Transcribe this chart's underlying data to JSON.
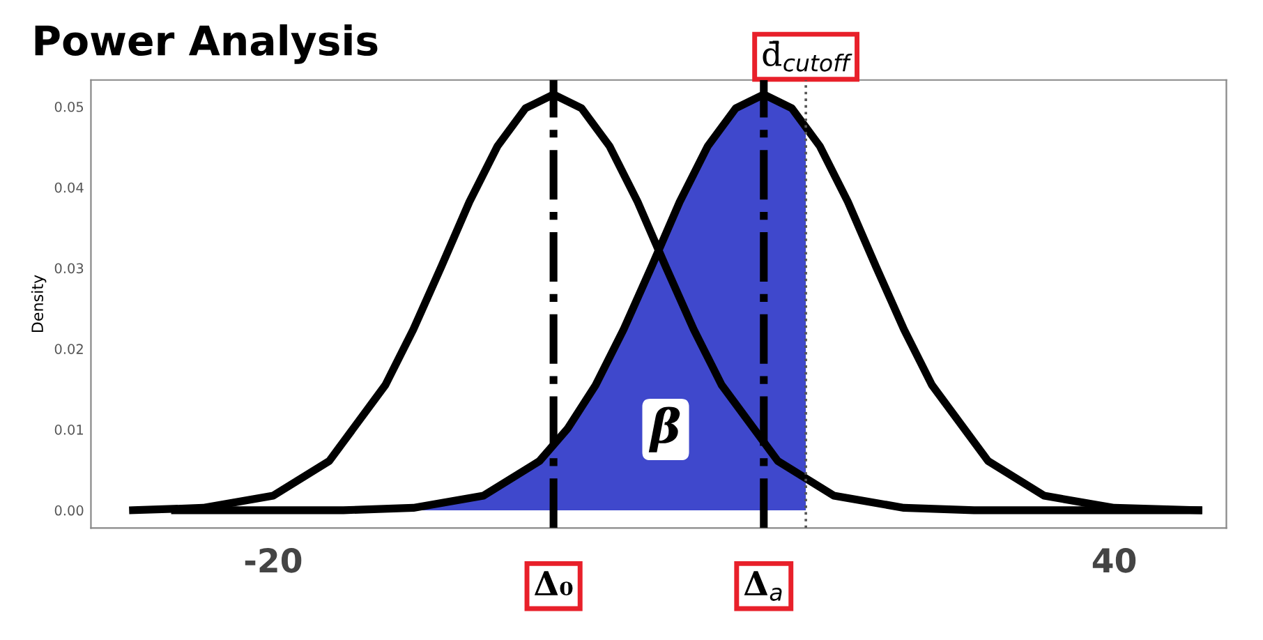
{
  "chart_data": {
    "type": "line",
    "title": "Power Analysis",
    "ylabel": "Density",
    "xlim": [
      -33,
      48
    ],
    "ylim": [
      -0.0022,
      0.0533
    ],
    "xticks": [
      -20,
      40
    ],
    "yticks": [
      {
        "value": 0,
        "label": "0.00"
      },
      {
        "value": 0.01,
        "label": "0.01"
      },
      {
        "value": 0.02,
        "label": "0.02"
      },
      {
        "value": 0.03,
        "label": "0.03"
      },
      {
        "value": 0.04,
        "label": "0.04"
      },
      {
        "value": 0.05,
        "label": "0.05"
      }
    ],
    "grid": false,
    "legend": false,
    "marker": "none",
    "line_style": "solid",
    "series": [
      {
        "type": "area",
        "color": "#3f48cc",
        "x": [
          -10,
          -5,
          -1,
          1,
          3,
          5,
          7,
          9,
          11,
          13,
          15,
          17,
          18
        ],
        "values": [
          0.0003,
          0.0018,
          0.0061,
          0.0101,
          0.0155,
          0.0224,
          0.0302,
          0.0382,
          0.0451,
          0.0498,
          0.0515,
          0.0498,
          0.0478
        ]
      },
      {
        "color": "#000000",
        "x": [
          -30,
          -25,
          -20,
          -16,
          -12,
          -10,
          -8,
          -6,
          -4,
          -2,
          0,
          2,
          4,
          6,
          8,
          10,
          12,
          16,
          20,
          25,
          30,
          35,
          40,
          46
        ],
        "values": [
          0.0,
          0.0003,
          0.0018,
          0.0061,
          0.0155,
          0.0224,
          0.0302,
          0.0382,
          0.0451,
          0.0498,
          0.0515,
          0.0498,
          0.0451,
          0.0382,
          0.0302,
          0.0224,
          0.0155,
          0.0061,
          0.0018,
          0.0003,
          0.0,
          0.0,
          0.0,
          0.0
        ]
      },
      {
        "color": "#000000",
        "x": [
          -27,
          -20,
          -15,
          -10,
          -5,
          -1,
          1,
          3,
          5,
          7,
          9,
          11,
          13,
          15,
          17,
          19,
          21,
          23,
          25,
          27,
          31,
          35,
          40,
          46
        ],
        "values": [
          0.0,
          0.0,
          0.0,
          0.0003,
          0.0018,
          0.0061,
          0.0101,
          0.0155,
          0.0224,
          0.0302,
          0.0382,
          0.0451,
          0.0498,
          0.0515,
          0.0498,
          0.0451,
          0.0382,
          0.0302,
          0.0224,
          0.0155,
          0.0061,
          0.0018,
          0.0003,
          0.0
        ]
      }
    ],
    "ref_lines": [
      {
        "axis": "x",
        "value": 0,
        "label": "Δ₀",
        "line_style": "dashdot",
        "color": "#000000"
      },
      {
        "axis": "x",
        "value": 15,
        "label": "Δ$_{a}$",
        "line_style": "dashdot",
        "color": "#000000"
      },
      {
        "axis": "x",
        "value": 18,
        "label": "d̄$_{cutoff}$",
        "line_style": "dotted",
        "color": "#555555"
      }
    ],
    "annotations": [
      {
        "text": "β",
        "x": 8,
        "y": 0.01
      }
    ]
  }
}
